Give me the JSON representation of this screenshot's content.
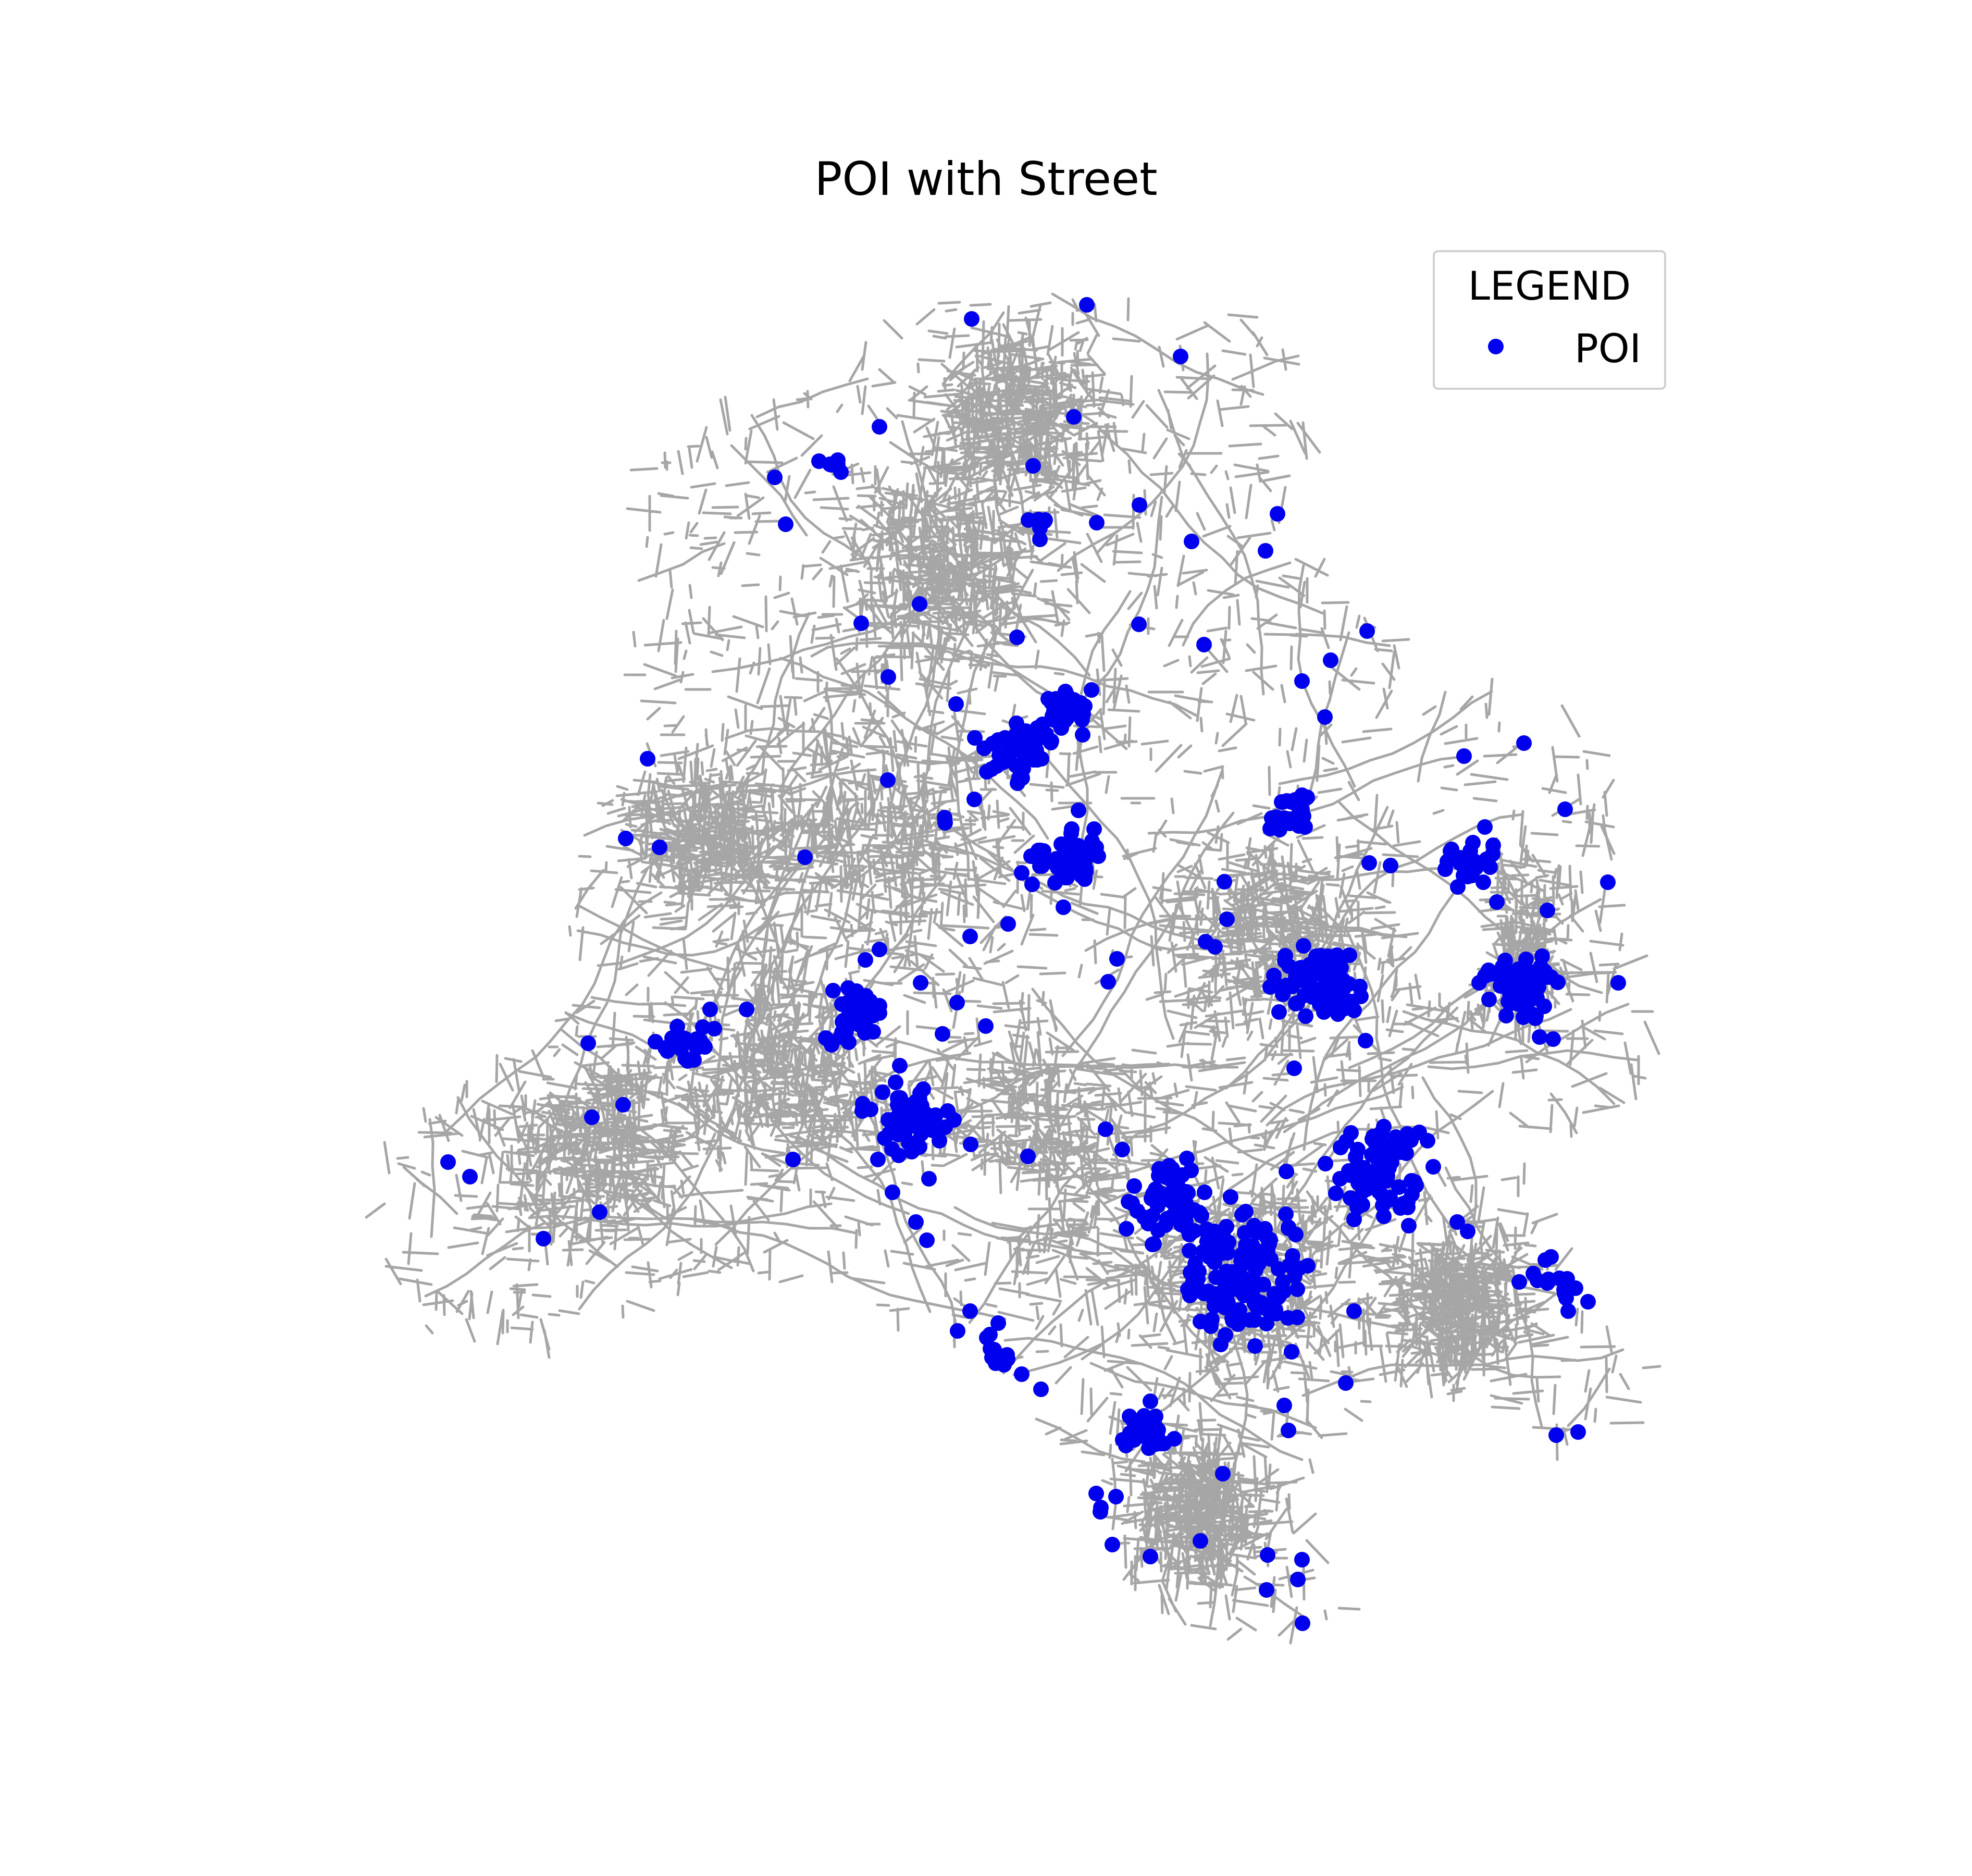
{
  "title": "POI with Street",
  "legend": {
    "title": "LEGEND",
    "items": [
      {
        "label": "POI",
        "color": "#0000ee"
      }
    ]
  },
  "colors": {
    "street": "#a6a6a6",
    "poi": "#0000ee",
    "background": "#ffffff"
  },
  "layers": [
    "street-network",
    "poi-points"
  ]
}
